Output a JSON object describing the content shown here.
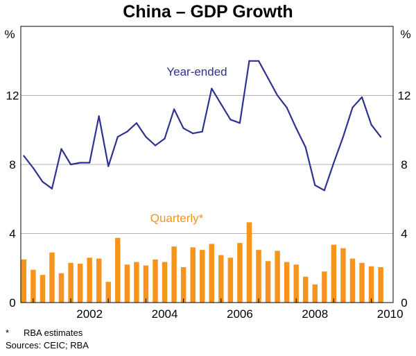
{
  "chart_data": {
    "type": "bar+line",
    "title": "China – GDP Growth",
    "y_unit_left": "%",
    "y_unit_right": "%",
    "ylim": [
      0,
      16
    ],
    "yticks": [
      0,
      4,
      8,
      12
    ],
    "xlim": [
      2000.67,
      2010.58
    ],
    "xticks": [
      2002,
      2004,
      2006,
      2008,
      2010
    ],
    "grid": "horizontal",
    "series": [
      {
        "name": "Quarterly*",
        "kind": "bar",
        "color": "#F7941D",
        "x": [
          2000.75,
          2001.0,
          2001.25,
          2001.5,
          2001.75,
          2002.0,
          2002.25,
          2002.5,
          2002.75,
          2003.0,
          2003.25,
          2003.5,
          2003.75,
          2004.0,
          2004.25,
          2004.5,
          2004.75,
          2005.0,
          2005.25,
          2005.5,
          2005.75,
          2006.0,
          2006.25,
          2006.5,
          2006.75,
          2007.0,
          2007.25,
          2007.5,
          2007.75,
          2008.0,
          2008.25,
          2008.5,
          2008.75,
          2009.0,
          2009.25,
          2009.5,
          2009.75,
          2010.0,
          2010.25
        ],
        "values": [
          2.5,
          1.9,
          1.6,
          2.9,
          1.7,
          2.3,
          2.25,
          2.6,
          2.55,
          1.2,
          3.75,
          2.2,
          2.35,
          2.15,
          2.5,
          2.35,
          3.25,
          2.05,
          3.2,
          3.05,
          3.4,
          2.75,
          2.6,
          3.45,
          4.65,
          3.05,
          2.4,
          3.0,
          2.35,
          2.2,
          1.5,
          1.05,
          1.8,
          3.35,
          3.15,
          2.55,
          2.3,
          2.1,
          2.05
        ]
      },
      {
        "name": "Year-ended",
        "kind": "line",
        "color": "#2E3192",
        "x": [
          2000.75,
          2001.0,
          2001.25,
          2001.5,
          2001.75,
          2002.0,
          2002.25,
          2002.5,
          2002.75,
          2003.0,
          2003.25,
          2003.5,
          2003.75,
          2004.0,
          2004.25,
          2004.5,
          2004.75,
          2005.0,
          2005.25,
          2005.5,
          2005.75,
          2006.0,
          2006.25,
          2006.5,
          2006.75,
          2007.0,
          2007.25,
          2007.5,
          2007.75,
          2008.0,
          2008.25,
          2008.5,
          2008.75,
          2009.0,
          2009.25,
          2009.5,
          2009.75,
          2010.0,
          2010.25
        ],
        "values": [
          8.5,
          7.8,
          7.0,
          6.6,
          8.9,
          8.0,
          8.1,
          8.1,
          10.8,
          7.9,
          9.6,
          9.9,
          10.4,
          9.6,
          9.1,
          9.5,
          11.2,
          10.1,
          9.8,
          9.9,
          12.4,
          11.5,
          10.6,
          10.4,
          14.0,
          14.0,
          13.0,
          12.0,
          11.3,
          10.1,
          9.0,
          6.8,
          6.5,
          8.1,
          9.6,
          11.3,
          11.9,
          10.3,
          9.6
        ]
      }
    ]
  },
  "notes": {
    "footnote_marker": "*",
    "footnote_text": "RBA estimates",
    "sources": "Sources: CEIC; RBA"
  }
}
